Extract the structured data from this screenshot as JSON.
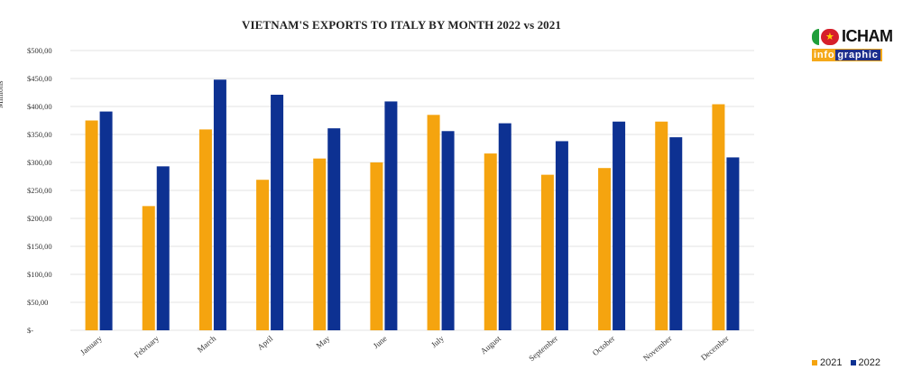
{
  "chart_data": {
    "type": "bar",
    "title": "VIETNAM'S EXPORTS TO ITALY BY MONTH 2022 vs 2021",
    "ylabel": "Millions",
    "xlabel": "",
    "ylim": [
      0,
      500
    ],
    "yticks": [
      {
        "value": 0,
        "label": "$-"
      },
      {
        "value": 50,
        "label": "$50,00"
      },
      {
        "value": 100,
        "label": "$100,00"
      },
      {
        "value": 150,
        "label": "$150,00"
      },
      {
        "value": 200,
        "label": "$200,00"
      },
      {
        "value": 250,
        "label": "$250,00"
      },
      {
        "value": 300,
        "label": "$300,00"
      },
      {
        "value": 350,
        "label": "$350,00"
      },
      {
        "value": 400,
        "label": "$400,00"
      },
      {
        "value": 450,
        "label": "$450,00"
      },
      {
        "value": 500,
        "label": "$500,00"
      }
    ],
    "categories": [
      "January",
      "February",
      "March",
      "April",
      "May",
      "June",
      "July",
      "August",
      "September",
      "October",
      "November",
      "December"
    ],
    "series": [
      {
        "name": "2021",
        "color": "#f5a40f",
        "values": [
          375,
          222,
          359,
          269,
          307,
          300,
          385,
          316,
          278,
          290,
          373,
          404
        ]
      },
      {
        "name": "2022",
        "color": "#0d3192",
        "values": [
          391,
          293,
          448,
          421,
          361,
          409,
          356,
          370,
          338,
          373,
          345,
          309
        ]
      }
    ],
    "grid": true,
    "legend": "bottom-right"
  },
  "logo": {
    "name": "ICHAM",
    "sub_a": "info",
    "sub_b": "graphic"
  }
}
